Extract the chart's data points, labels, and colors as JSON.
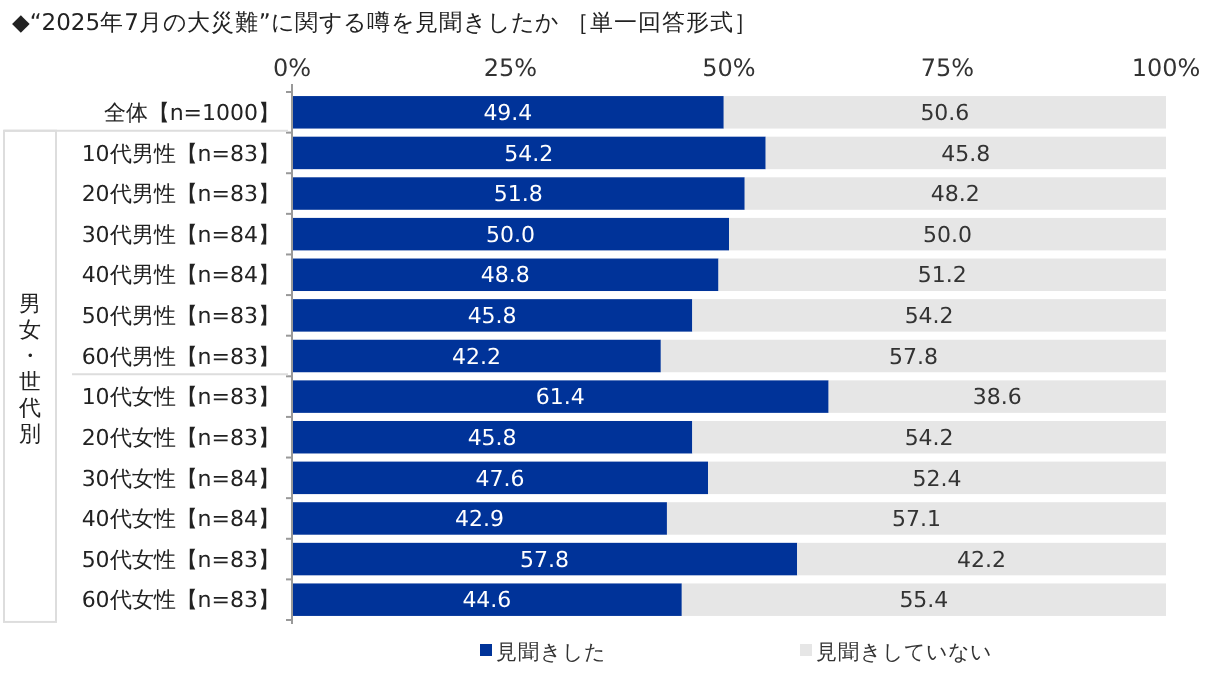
{
  "chart_data": {
    "type": "bar",
    "orientation": "horizontal",
    "stacked": true,
    "title": "◆“2025年7月の大災難”に関する噂を見聞きしたか ［単一回答形式］",
    "categories": [
      "全体【n=1000】",
      "10代男性【n=83】",
      "20代男性【n=83】",
      "30代男性【n=84】",
      "40代男性【n=84】",
      "50代男性【n=83】",
      "60代男性【n=83】",
      "10代女性【n=83】",
      "20代女性【n=83】",
      "30代女性【n=84】",
      "40代女性【n=84】",
      "50代女性【n=83】",
      "60代女性【n=83】"
    ],
    "series": [
      {
        "name": "見聞きした",
        "color": "#003399",
        "values": [
          49.4,
          54.2,
          51.8,
          50.0,
          48.8,
          45.8,
          42.2,
          61.4,
          45.8,
          47.6,
          42.9,
          57.8,
          44.6
        ],
        "value_labels": [
          "49.4",
          "54.2",
          "51.8",
          "50.0",
          "48.8",
          "45.8",
          "42.2",
          "61.4",
          "45.8",
          "47.6",
          "42.9",
          "57.8",
          "44.6"
        ]
      },
      {
        "name": "見聞きしていない",
        "color": "#e6e6e6",
        "values": [
          50.6,
          45.8,
          48.2,
          50.0,
          51.2,
          54.2,
          57.8,
          38.6,
          54.2,
          52.4,
          57.1,
          42.2,
          55.4
        ],
        "value_labels": [
          "50.6",
          "45.8",
          "48.2",
          "50.0",
          "51.2",
          "54.2",
          "57.8",
          "38.6",
          "54.2",
          "52.4",
          "57.1",
          "42.2",
          "55.4"
        ]
      }
    ],
    "xlim": [
      0,
      100
    ],
    "xticks": [
      {
        "value": 0,
        "label": "0%"
      },
      {
        "value": 25,
        "label": "25%"
      },
      {
        "value": 50,
        "label": "50%"
      },
      {
        "value": 75,
        "label": "75%"
      },
      {
        "value": 100,
        "label": "100%"
      }
    ],
    "annotations": [
      "男女・世代別"
    ],
    "legend": "bottom",
    "grid": false
  }
}
